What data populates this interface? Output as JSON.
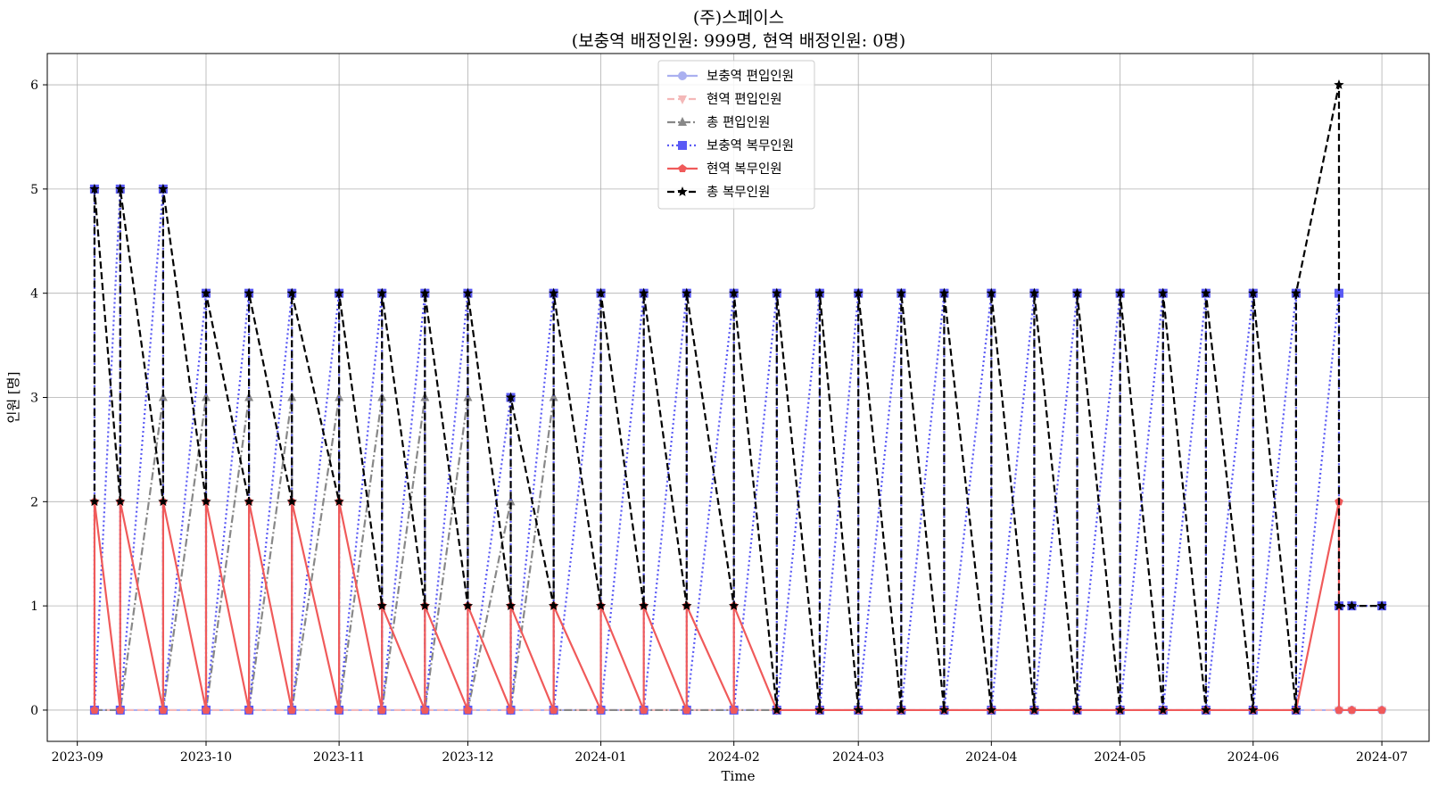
{
  "chart_data": {
    "type": "line",
    "title": "(주)스페이스",
    "subtitle": "(보충역 배정인원: 999명, 현역 배정인원: 0명)",
    "xlabel": "Time",
    "ylabel": "인원 [명]",
    "ylim": [
      -0.3,
      6.3
    ],
    "xlim": [
      "2023-08-25",
      "2024-07-12"
    ],
    "grid": true,
    "legend_position": "top-center",
    "x_ticks": [
      {
        "date": "2023-09-01",
        "label": "2023-09"
      },
      {
        "date": "2023-10-01",
        "label": "2023-10"
      },
      {
        "date": "2023-11-01",
        "label": "2023-11"
      },
      {
        "date": "2023-12-01",
        "label": "2023-12"
      },
      {
        "date": "2024-01-01",
        "label": "2024-01"
      },
      {
        "date": "2024-02-01",
        "label": "2024-02"
      },
      {
        "date": "2024-03-01",
        "label": "2024-03"
      },
      {
        "date": "2024-04-01",
        "label": "2024-04"
      },
      {
        "date": "2024-05-01",
        "label": "2024-05"
      },
      {
        "date": "2024-06-01",
        "label": "2024-06"
      },
      {
        "date": "2024-07-01",
        "label": "2024-07"
      }
    ],
    "y_ticks": [
      0,
      1,
      2,
      3,
      4,
      5,
      6
    ],
    "series": [
      {
        "name": "보충역 편입인원",
        "color": "#aab0f0",
        "line": "solid",
        "marker": "circle",
        "points": [
          [
            "2023-09-05",
            0
          ],
          [
            "2023-09-11",
            0
          ],
          [
            "2023-09-21",
            0
          ],
          [
            "2023-10-01",
            0
          ],
          [
            "2023-10-11",
            0
          ],
          [
            "2023-10-21",
            0
          ],
          [
            "2023-11-01",
            0
          ],
          [
            "2023-11-11",
            0
          ],
          [
            "2023-11-21",
            0
          ],
          [
            "2023-12-01",
            0
          ],
          [
            "2023-12-11",
            0
          ],
          [
            "2023-12-21",
            0
          ],
          [
            "2024-01-01",
            0
          ],
          [
            "2024-01-11",
            0
          ],
          [
            "2024-01-21",
            0
          ],
          [
            "2024-02-01",
            0
          ],
          [
            "2024-02-11",
            0
          ],
          [
            "2024-02-21",
            0
          ],
          [
            "2024-03-01",
            0
          ],
          [
            "2024-03-11",
            0
          ],
          [
            "2024-03-21",
            0
          ],
          [
            "2024-04-01",
            0
          ],
          [
            "2024-04-11",
            0
          ],
          [
            "2024-04-21",
            0
          ],
          [
            "2024-05-01",
            0
          ],
          [
            "2024-05-11",
            0
          ],
          [
            "2024-05-21",
            0
          ],
          [
            "2024-06-01",
            0
          ],
          [
            "2024-06-11",
            0
          ],
          [
            "2024-06-21",
            0
          ],
          [
            "2024-06-24",
            0
          ],
          [
            "2024-07-01",
            0
          ]
        ]
      },
      {
        "name": "현역 편입인원",
        "color": "#f4b8b8",
        "line": "dashed",
        "marker": "triangle-down",
        "points": [
          [
            "2023-09-05",
            0
          ],
          [
            "2023-09-11",
            0
          ],
          [
            "2023-09-21",
            0
          ],
          [
            "2023-10-01",
            0
          ],
          [
            "2023-10-11",
            0
          ],
          [
            "2023-10-21",
            0
          ],
          [
            "2023-11-01",
            0
          ],
          [
            "2023-11-11",
            0
          ],
          [
            "2023-11-21",
            0
          ],
          [
            "2023-12-01",
            0
          ],
          [
            "2023-12-11",
            0
          ],
          [
            "2023-12-21",
            0
          ],
          [
            "2024-01-01",
            0
          ],
          [
            "2024-01-11",
            0
          ],
          [
            "2024-01-21",
            0
          ],
          [
            "2024-02-01",
            0
          ],
          [
            "2024-02-11",
            0
          ],
          [
            "2024-02-21",
            0
          ],
          [
            "2024-03-01",
            0
          ],
          [
            "2024-03-11",
            0
          ],
          [
            "2024-03-21",
            0
          ],
          [
            "2024-04-01",
            0
          ],
          [
            "2024-04-11",
            0
          ],
          [
            "2024-04-21",
            0
          ],
          [
            "2024-05-01",
            0
          ],
          [
            "2024-05-11",
            0
          ],
          [
            "2024-05-21",
            0
          ],
          [
            "2024-06-01",
            0
          ],
          [
            "2024-06-11",
            0
          ],
          [
            "2024-06-21",
            0
          ],
          [
            "2024-06-24",
            0
          ],
          [
            "2024-07-01",
            0
          ]
        ]
      },
      {
        "name": "총 편입인원",
        "color": "#888888",
        "line": "dashdot",
        "marker": "triangle-up",
        "points": [
          [
            "2023-09-05",
            0
          ],
          [
            "2023-09-11",
            0
          ],
          [
            "2023-09-21",
            3
          ],
          [
            "2023-09-21",
            0
          ],
          [
            "2023-10-01",
            3
          ],
          [
            "2023-10-01",
            0
          ],
          [
            "2023-10-11",
            3
          ],
          [
            "2023-10-11",
            0
          ],
          [
            "2023-10-21",
            3
          ],
          [
            "2023-10-21",
            0
          ],
          [
            "2023-11-01",
            3
          ],
          [
            "2023-11-01",
            0
          ],
          [
            "2023-11-11",
            3
          ],
          [
            "2023-11-11",
            0
          ],
          [
            "2023-11-21",
            3
          ],
          [
            "2023-11-21",
            0
          ],
          [
            "2023-12-01",
            3
          ],
          [
            "2023-12-01",
            0
          ],
          [
            "2023-12-11",
            2
          ],
          [
            "2023-12-11",
            0
          ],
          [
            "2023-12-21",
            3
          ],
          [
            "2023-12-21",
            0
          ],
          [
            "2024-01-01",
            0
          ],
          [
            "2024-01-11",
            0
          ],
          [
            "2024-01-21",
            0
          ],
          [
            "2024-02-01",
            0
          ],
          [
            "2024-02-11",
            0
          ]
        ]
      },
      {
        "name": "보충역 복무인원",
        "color": "#5a5af5",
        "line": "dotted",
        "marker": "square",
        "points": [
          [
            "2023-09-05",
            5
          ],
          [
            "2023-09-05",
            0
          ],
          [
            "2023-09-11",
            5
          ],
          [
            "2023-09-11",
            0
          ],
          [
            "2023-09-21",
            5
          ],
          [
            "2023-09-21",
            0
          ],
          [
            "2023-10-01",
            4
          ],
          [
            "2023-10-01",
            0
          ],
          [
            "2023-10-11",
            4
          ],
          [
            "2023-10-11",
            0
          ],
          [
            "2023-10-21",
            4
          ],
          [
            "2023-10-21",
            0
          ],
          [
            "2023-11-01",
            4
          ],
          [
            "2023-11-01",
            0
          ],
          [
            "2023-11-11",
            4
          ],
          [
            "2023-11-11",
            0
          ],
          [
            "2023-11-21",
            4
          ],
          [
            "2023-11-21",
            0
          ],
          [
            "2023-12-01",
            4
          ],
          [
            "2023-12-01",
            0
          ],
          [
            "2023-12-11",
            3
          ],
          [
            "2023-12-11",
            0
          ],
          [
            "2023-12-21",
            4
          ],
          [
            "2023-12-21",
            0
          ],
          [
            "2024-01-01",
            4
          ],
          [
            "2024-01-01",
            0
          ],
          [
            "2024-01-11",
            4
          ],
          [
            "2024-01-11",
            0
          ],
          [
            "2024-01-21",
            4
          ],
          [
            "2024-01-21",
            0
          ],
          [
            "2024-02-01",
            4
          ],
          [
            "2024-02-01",
            0
          ],
          [
            "2024-02-11",
            4
          ],
          [
            "2024-02-11",
            0
          ],
          [
            "2024-02-21",
            4
          ],
          [
            "2024-02-21",
            0
          ],
          [
            "2024-03-01",
            4
          ],
          [
            "2024-03-01",
            0
          ],
          [
            "2024-03-11",
            4
          ],
          [
            "2024-03-11",
            0
          ],
          [
            "2024-03-21",
            4
          ],
          [
            "2024-03-21",
            0
          ],
          [
            "2024-04-01",
            4
          ],
          [
            "2024-04-01",
            0
          ],
          [
            "2024-04-11",
            4
          ],
          [
            "2024-04-11",
            0
          ],
          [
            "2024-04-21",
            4
          ],
          [
            "2024-04-21",
            0
          ],
          [
            "2024-05-01",
            4
          ],
          [
            "2024-05-01",
            0
          ],
          [
            "2024-05-11",
            4
          ],
          [
            "2024-05-11",
            0
          ],
          [
            "2024-05-21",
            4
          ],
          [
            "2024-05-21",
            0
          ],
          [
            "2024-06-01",
            4
          ],
          [
            "2024-06-01",
            0
          ],
          [
            "2024-06-11",
            4
          ],
          [
            "2024-06-11",
            0
          ],
          [
            "2024-06-21",
            4
          ],
          [
            "2024-06-21",
            1
          ],
          [
            "2024-06-24",
            1
          ],
          [
            "2024-07-01",
            1
          ]
        ]
      },
      {
        "name": "현역 복무인원",
        "color": "#f05a5a",
        "line": "solid",
        "marker": "pentagon",
        "points": [
          [
            "2023-09-05",
            0
          ],
          [
            "2023-09-05",
            2
          ],
          [
            "2023-09-11",
            0
          ],
          [
            "2023-09-11",
            2
          ],
          [
            "2023-09-21",
            0
          ],
          [
            "2023-09-21",
            2
          ],
          [
            "2023-10-01",
            0
          ],
          [
            "2023-10-01",
            2
          ],
          [
            "2023-10-11",
            0
          ],
          [
            "2023-10-11",
            2
          ],
          [
            "2023-10-21",
            0
          ],
          [
            "2023-10-21",
            2
          ],
          [
            "2023-11-01",
            0
          ],
          [
            "2023-11-01",
            2
          ],
          [
            "2023-11-11",
            0
          ],
          [
            "2023-11-11",
            1
          ],
          [
            "2023-11-21",
            0
          ],
          [
            "2023-11-21",
            1
          ],
          [
            "2023-12-01",
            0
          ],
          [
            "2023-12-01",
            1
          ],
          [
            "2023-12-11",
            0
          ],
          [
            "2023-12-11",
            1
          ],
          [
            "2023-12-21",
            0
          ],
          [
            "2023-12-21",
            1
          ],
          [
            "2024-01-01",
            0
          ],
          [
            "2024-01-01",
            1
          ],
          [
            "2024-01-11",
            0
          ],
          [
            "2024-01-11",
            1
          ],
          [
            "2024-01-21",
            0
          ],
          [
            "2024-01-21",
            1
          ],
          [
            "2024-02-01",
            0
          ],
          [
            "2024-02-01",
            1
          ],
          [
            "2024-02-11",
            0
          ],
          [
            "2024-02-21",
            0
          ],
          [
            "2024-03-01",
            0
          ],
          [
            "2024-03-11",
            0
          ],
          [
            "2024-03-21",
            0
          ],
          [
            "2024-04-01",
            0
          ],
          [
            "2024-04-11",
            0
          ],
          [
            "2024-04-21",
            0
          ],
          [
            "2024-05-01",
            0
          ],
          [
            "2024-05-11",
            0
          ],
          [
            "2024-05-21",
            0
          ],
          [
            "2024-06-01",
            0
          ],
          [
            "2024-06-11",
            0
          ],
          [
            "2024-06-21",
            2
          ],
          [
            "2024-06-21",
            0
          ],
          [
            "2024-06-24",
            0
          ],
          [
            "2024-07-01",
            0
          ]
        ]
      },
      {
        "name": "총 복무인원",
        "color": "#000000",
        "line": "dashed",
        "marker": "star",
        "points": [
          [
            "2023-09-05",
            2
          ],
          [
            "2023-09-05",
            5
          ],
          [
            "2023-09-11",
            2
          ],
          [
            "2023-09-11",
            5
          ],
          [
            "2023-09-21",
            2
          ],
          [
            "2023-09-21",
            5
          ],
          [
            "2023-10-01",
            2
          ],
          [
            "2023-10-01",
            4
          ],
          [
            "2023-10-11",
            2
          ],
          [
            "2023-10-11",
            4
          ],
          [
            "2023-10-21",
            2
          ],
          [
            "2023-10-21",
            4
          ],
          [
            "2023-11-01",
            2
          ],
          [
            "2023-11-01",
            4
          ],
          [
            "2023-11-11",
            1
          ],
          [
            "2023-11-11",
            4
          ],
          [
            "2023-11-21",
            1
          ],
          [
            "2023-11-21",
            4
          ],
          [
            "2023-12-01",
            1
          ],
          [
            "2023-12-01",
            4
          ],
          [
            "2023-12-11",
            1
          ],
          [
            "2023-12-11",
            3
          ],
          [
            "2023-12-21",
            1
          ],
          [
            "2023-12-21",
            4
          ],
          [
            "2024-01-01",
            1
          ],
          [
            "2024-01-01",
            4
          ],
          [
            "2024-01-11",
            1
          ],
          [
            "2024-01-11",
            4
          ],
          [
            "2024-01-21",
            1
          ],
          [
            "2024-01-21",
            4
          ],
          [
            "2024-02-01",
            1
          ],
          [
            "2024-02-01",
            4
          ],
          [
            "2024-02-11",
            0
          ],
          [
            "2024-02-11",
            4
          ],
          [
            "2024-02-21",
            0
          ],
          [
            "2024-02-21",
            4
          ],
          [
            "2024-03-01",
            0
          ],
          [
            "2024-03-01",
            4
          ],
          [
            "2024-03-11",
            0
          ],
          [
            "2024-03-11",
            4
          ],
          [
            "2024-03-21",
            0
          ],
          [
            "2024-03-21",
            4
          ],
          [
            "2024-04-01",
            0
          ],
          [
            "2024-04-01",
            4
          ],
          [
            "2024-04-11",
            0
          ],
          [
            "2024-04-11",
            4
          ],
          [
            "2024-04-21",
            0
          ],
          [
            "2024-04-21",
            4
          ],
          [
            "2024-05-01",
            0
          ],
          [
            "2024-05-01",
            4
          ],
          [
            "2024-05-11",
            0
          ],
          [
            "2024-05-11",
            4
          ],
          [
            "2024-05-21",
            0
          ],
          [
            "2024-05-21",
            4
          ],
          [
            "2024-06-01",
            0
          ],
          [
            "2024-06-01",
            4
          ],
          [
            "2024-06-11",
            0
          ],
          [
            "2024-06-11",
            4
          ],
          [
            "2024-06-21",
            6
          ],
          [
            "2024-06-21",
            1
          ],
          [
            "2024-06-24",
            1
          ],
          [
            "2024-07-01",
            1
          ]
        ]
      }
    ]
  }
}
